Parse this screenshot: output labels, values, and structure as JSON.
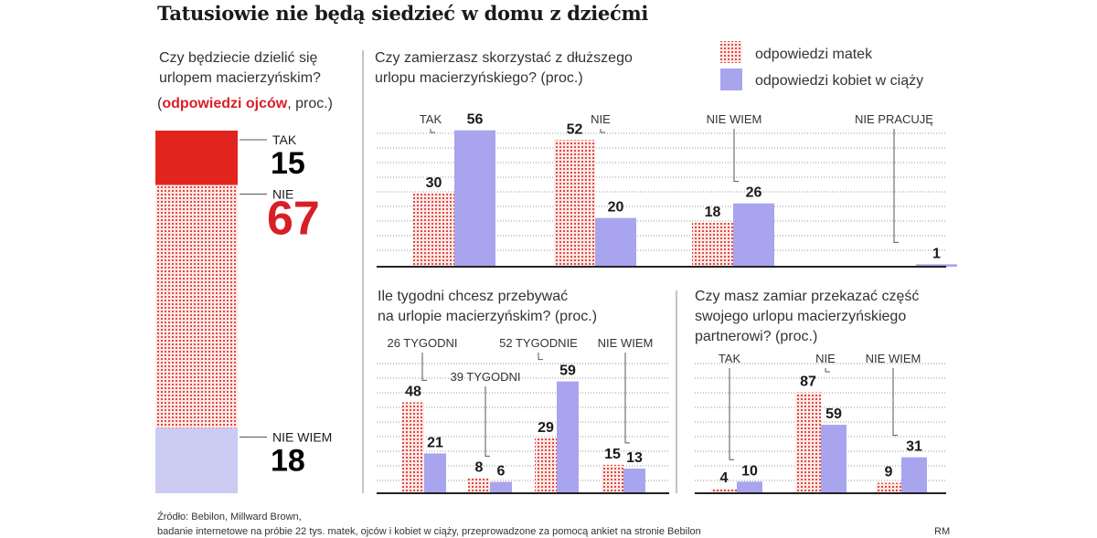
{
  "title": "Tatusiowie nie będą siedzieć w domu z dziećmi",
  "colors": {
    "red": "#e2241f",
    "red_pattern_bg": "#fde8e6",
    "red_pattern_dot": "#e04a42",
    "light_lilac": "#cbcbf3",
    "purple": "#a9a4ee",
    "axis": "#222222",
    "grid": "#9a9a9a"
  },
  "legend": {
    "mothers": "odpowiedzi matek",
    "pregnant": "odpowiedzi kobiet w ciąży"
  },
  "chart_data": [
    {
      "type": "bar",
      "subtype": "stacked-100",
      "title": "Czy będziecie dzielić się urlopem macierzyńskim?",
      "title_lines": [
        "Czy będziecie dzielić się",
        "urlopem macierzyńskim?"
      ],
      "subtitle_highlight": "odpowiedzi ojców",
      "subtitle_prefix": "(",
      "subtitle_suffix": ", proc.)",
      "segments": [
        {
          "label": "TAK",
          "value": 15
        },
        {
          "label": "NIE",
          "value": 67
        },
        {
          "label": "NIE WIEM",
          "value": 18
        }
      ]
    },
    {
      "type": "bar",
      "title": "Czy zamierzasz skorzystać z dłuższego urlopu macierzyńskiego? (proc.)",
      "title_lines": [
        "Czy zamierzasz skorzystać z dłuższego",
        "urlopu macierzyńskiego? (proc.)"
      ],
      "categories": [
        "TAK",
        "NIE",
        "NIE WIEM",
        "NIE PRACUJĘ"
      ],
      "series": [
        {
          "name": "odpowiedzi matek",
          "values": [
            30,
            52,
            18,
            null
          ]
        },
        {
          "name": "odpowiedzi kobiet w ciąży",
          "values": [
            56,
            20,
            26,
            1
          ]
        }
      ],
      "ylim": [
        0,
        60
      ],
      "grid": true
    },
    {
      "type": "bar",
      "title": "Ile tygodni chcesz przebywać na urlopie macierzyńskim? (proc.)",
      "title_lines": [
        "Ile tygodni chcesz przebywać",
        "na urlopie macierzyńskim? (proc.)"
      ],
      "categories": [
        "26 TYGODNI",
        "39 TYGODNI",
        "52 TYGODNIE",
        "NIE WIEM"
      ],
      "series": [
        {
          "name": "odpowiedzi matek",
          "values": [
            48,
            8,
            29,
            15
          ]
        },
        {
          "name": "odpowiedzi kobiet w ciąży",
          "values": [
            21,
            6,
            59,
            13
          ]
        }
      ],
      "ylim": [
        0,
        80
      ],
      "grid": true
    },
    {
      "type": "bar",
      "title": "Czy masz zamiar przekazać część swojego urlopu macierzyńskiego partnerowi? (proc.)",
      "title_lines": [
        "Czy masz zamiar przekazać część",
        "swojego urlopu macierzyńskiego",
        "partnerowi? (proc.)"
      ],
      "categories": [
        "TAK",
        "NIE",
        "NIE WIEM"
      ],
      "series": [
        {
          "name": "odpowiedzi matek",
          "values": [
            4,
            87,
            9
          ]
        },
        {
          "name": "odpowiedzi kobiet w ciąży",
          "values": [
            10,
            59,
            31
          ]
        }
      ],
      "ylim": [
        0,
        100
      ],
      "grid": true
    }
  ],
  "source": {
    "line1": "Źródło: Bebilon, Millward Brown,",
    "line2": "badanie internetowe na próbie 22 tys. matek, ojców i kobiet w ciąży, przeprowadzone za pomocą ankiet na stronie Bebilon",
    "credit": "RM"
  }
}
